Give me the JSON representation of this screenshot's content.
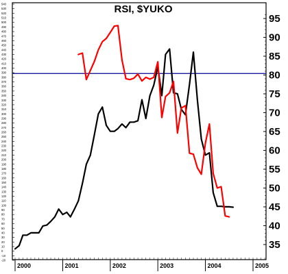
{
  "chart_data": {
    "type": "line",
    "title": "RSI, $YUKO",
    "xlabel": "",
    "ylabel": "",
    "x_ticks": [
      "2000",
      "2001",
      "2002",
      "2003",
      "2004",
      "2005"
    ],
    "left_axis": {
      "min": -20,
      "max": 540,
      "ticks": [
        "540",
        "530",
        "520",
        "510",
        "500",
        "490",
        "480",
        "470",
        "460",
        "450",
        "440",
        "430",
        "420",
        "410",
        "400",
        "390",
        "380",
        "370",
        "360",
        "350",
        "340",
        "330",
        "320",
        "310",
        "300",
        "290",
        "280",
        "270",
        "260",
        "250",
        "240",
        "230",
        "220",
        "210",
        "200",
        "190",
        "180",
        "170",
        "160",
        "150",
        "140",
        "130",
        "120",
        "110",
        "100",
        "90",
        "80",
        "70",
        "60",
        "50",
        "40",
        "30",
        "20",
        "10",
        "0",
        "-10",
        "-20"
      ]
    },
    "right_axis": {
      "min": 32,
      "max": 97,
      "ticks": [
        "95",
        "90",
        "85",
        "80",
        "75",
        "70",
        "65",
        "60",
        "55",
        "50",
        "45",
        "40",
        "35"
      ]
    },
    "reference_line": {
      "axis": "right",
      "value": 80.4,
      "color": "#1a1aa0"
    },
    "series": [
      {
        "axis": "left",
        "color": "#000000",
        "x": [
          "2000-01-01",
          "2000-02-01",
          "2000-03-01",
          "2000-04-01",
          "2000-05-01",
          "2000-06-01",
          "2000-07-01",
          "2000-08-01",
          "2000-09-01",
          "2000-10-01",
          "2000-11-01",
          "2000-12-01",
          "2001-01-01",
          "2001-02-01",
          "2001-03-01",
          "2001-04-01",
          "2001-05-01",
          "2001-06-01",
          "2001-07-01",
          "2001-08-01",
          "2001-09-01",
          "2001-10-01",
          "2001-11-01",
          "2001-12-01",
          "2002-01-01",
          "2002-02-01",
          "2002-03-01",
          "2002-04-01",
          "2002-05-01",
          "2002-06-01",
          "2002-07-01",
          "2002-08-01",
          "2002-09-01",
          "2002-10-01",
          "2002-11-01",
          "2002-12-01",
          "2003-01-01",
          "2003-02-01",
          "2003-03-01",
          "2003-04-01",
          "2003-05-01",
          "2003-06-01",
          "2003-07-01",
          "2003-08-01",
          "2003-09-01",
          "2003-10-01",
          "2003-11-01",
          "2003-12-01",
          "2004-01-01",
          "2004-02-01",
          "2004-03-01",
          "2004-04-01",
          "2004-05-01",
          "2004-06-01",
          "2004-07-01",
          "2004-08-01"
        ],
        "values": [
          5,
          12,
          35,
          35,
          40,
          40,
          40,
          55,
          57,
          65,
          75,
          92,
          80,
          85,
          75,
          92,
          110,
          148,
          190,
          210,
          255,
          300,
          315,
          275,
          262,
          262,
          268,
          278,
          270,
          282,
          282,
          285,
          331,
          290,
          340,
          363,
          403,
          340,
          430,
          442,
          346,
          344,
          310,
          298,
          364,
          435,
          330,
          245,
          210,
          215,
          128,
          98,
          98,
          97,
          97,
          96
        ]
      },
      {
        "axis": "left",
        "color": "#ff0000",
        "x": [
          "2001-05-01",
          "2001-06-01",
          "2001-07-01",
          "2001-08-01",
          "2001-09-01",
          "2001-10-01",
          "2001-11-01",
          "2001-12-01",
          "2002-01-01",
          "2002-02-01",
          "2002-03-01",
          "2002-04-01",
          "2002-05-01",
          "2002-06-01",
          "2002-07-01",
          "2002-08-01",
          "2002-09-01",
          "2002-10-01",
          "2002-11-01",
          "2002-12-01",
          "2003-01-01",
          "2003-02-01",
          "2003-03-01",
          "2003-04-01",
          "2003-05-01",
          "2003-06-01",
          "2003-07-01",
          "2003-08-01",
          "2003-09-01",
          "2003-10-01",
          "2003-11-01",
          "2003-12-01",
          "2004-01-01",
          "2004-02-01",
          "2004-03-01",
          "2004-04-01",
          "2004-05-01",
          "2004-06-01",
          "2004-07-01"
        ],
        "values": [
          430,
          433,
          375,
          395,
          415,
          440,
          458,
          465,
          478,
          492,
          493,
          418,
          377,
          375,
          378,
          387,
          372,
          380,
          376,
          380,
          414,
          292,
          338,
          346,
          371,
          258,
          313,
          318,
          214,
          212,
          182,
          168,
          236,
          278,
          170,
          138,
          141,
          77,
          75
        ]
      }
    ],
    "grid": false,
    "legend": "none"
  }
}
